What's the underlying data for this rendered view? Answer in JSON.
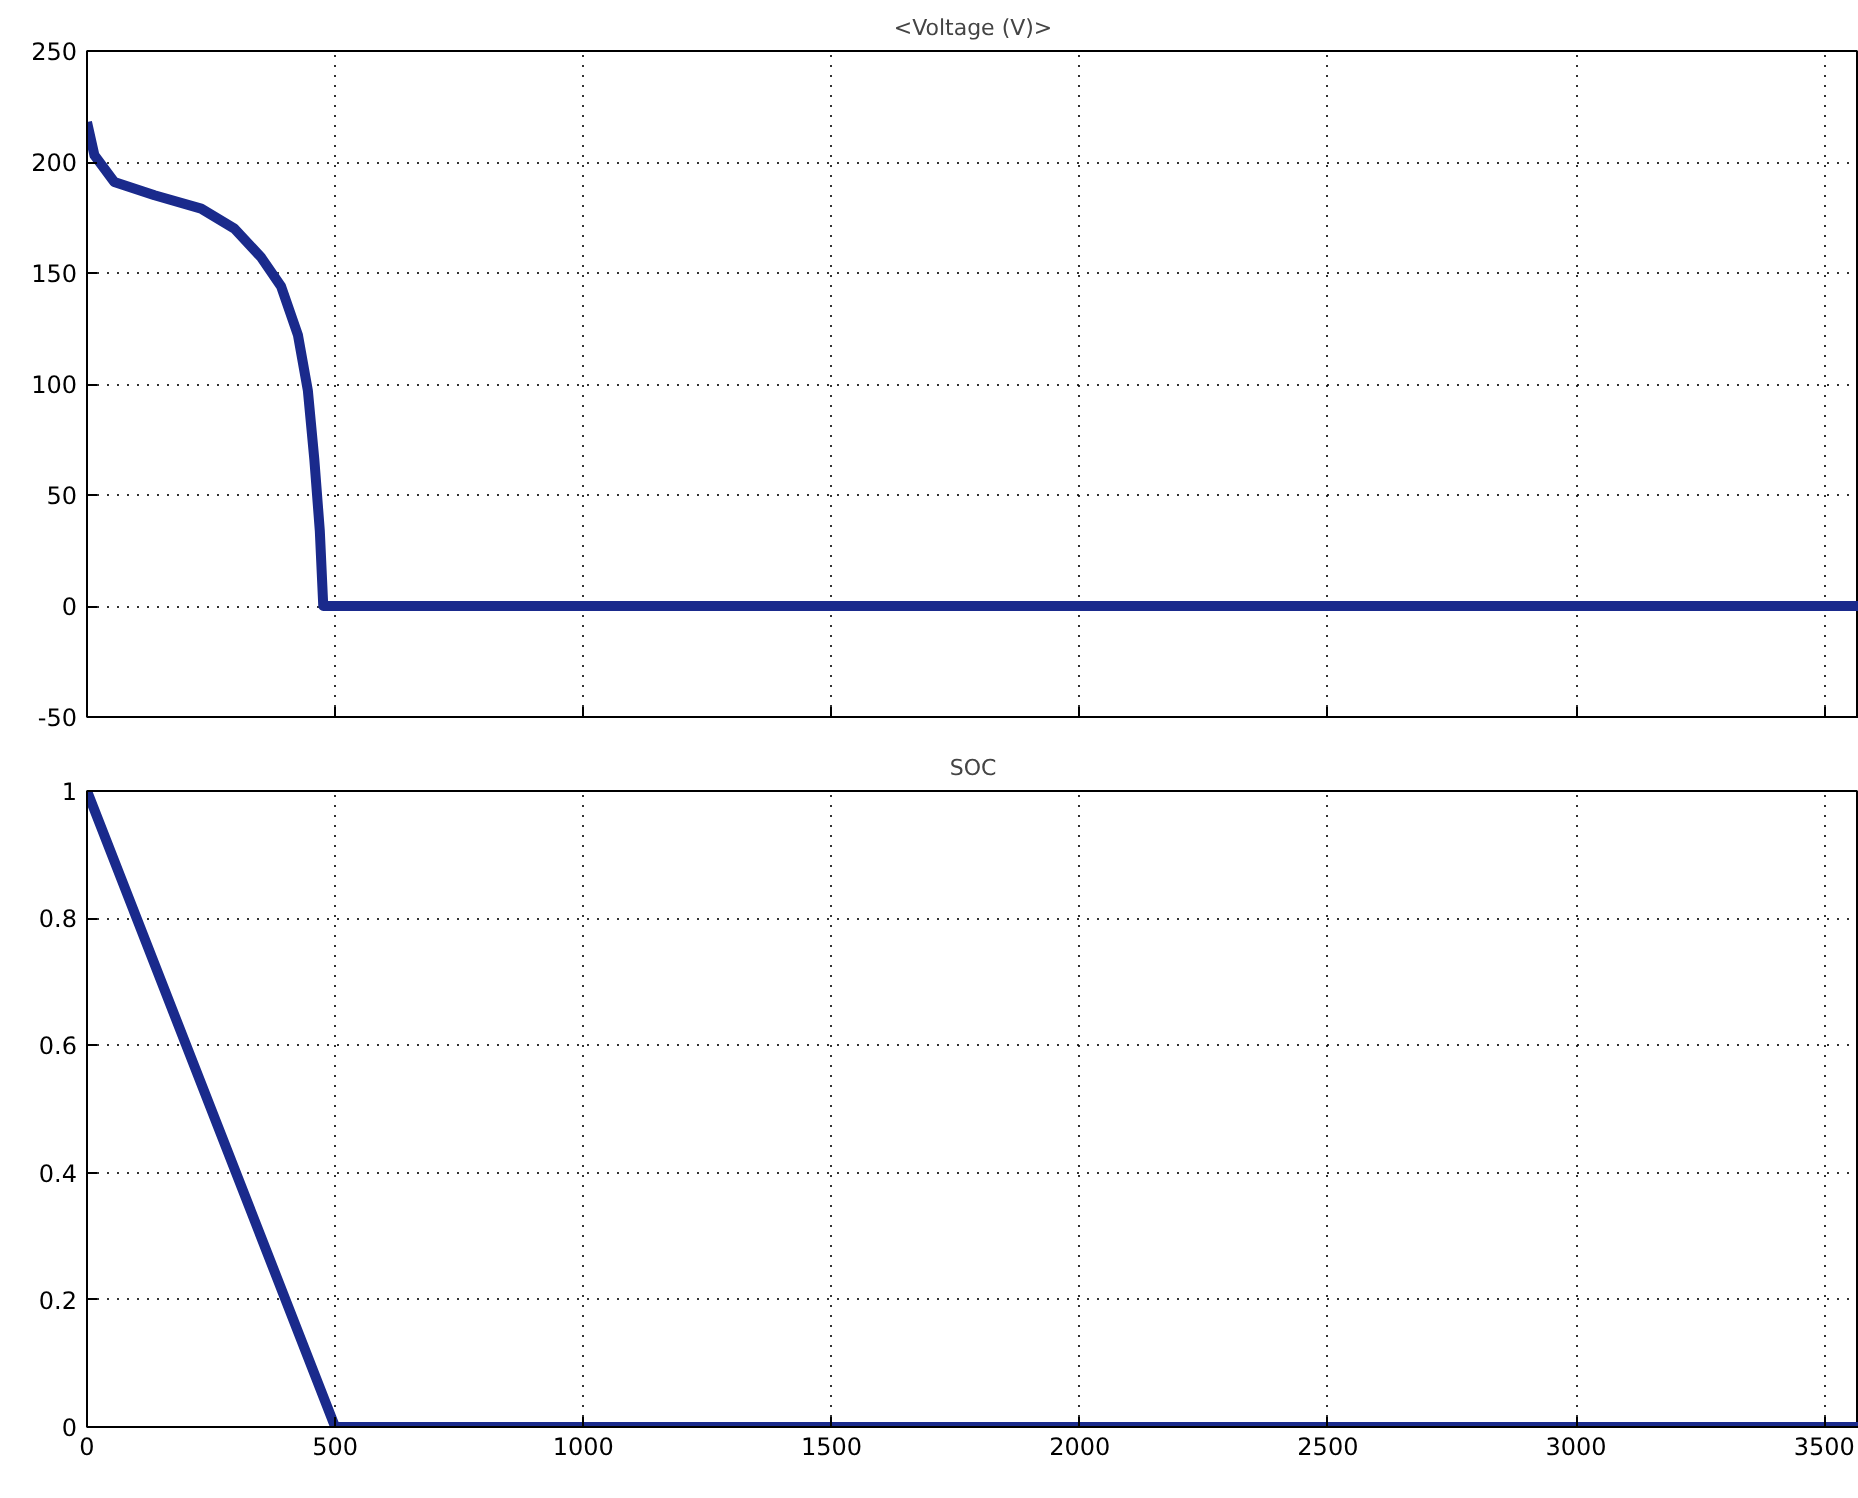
{
  "chart_data": [
    {
      "type": "line",
      "title": "<Voltage (V)>",
      "tick_labels": "y",
      "grid": true,
      "xlim": [
        0,
        3570
      ],
      "xticks": [
        0,
        500,
        1000,
        1500,
        2000,
        2500,
        3000,
        3500
      ],
      "ylim": [
        -50,
        250
      ],
      "yticks": [
        -50,
        0,
        50,
        100,
        150,
        200,
        250
      ],
      "series": [
        {
          "color": "#1a2a8c",
          "x": [
            0,
            15,
            55,
            136,
            230,
            297,
            351,
            391,
            425,
            445,
            458,
            469,
            476,
            3570
          ],
          "values": [
            218,
            203,
            191,
            185,
            179,
            170,
            157,
            144,
            122,
            97,
            66,
            34,
            0,
            0
          ]
        }
      ]
    },
    {
      "type": "line",
      "title": "SOC",
      "grid": true,
      "xlim": [
        0,
        3570
      ],
      "xticks": [
        0,
        500,
        1000,
        1500,
        2000,
        2500,
        3000,
        3500
      ],
      "ylim": [
        0,
        1
      ],
      "yticks": [
        0,
        0.2,
        0.4,
        0.6,
        0.8,
        1
      ],
      "series": [
        {
          "color": "#1a2a8c",
          "x": [
            0,
            500,
            3570
          ],
          "values": [
            1,
            0,
            0
          ]
        }
      ]
    }
  ]
}
